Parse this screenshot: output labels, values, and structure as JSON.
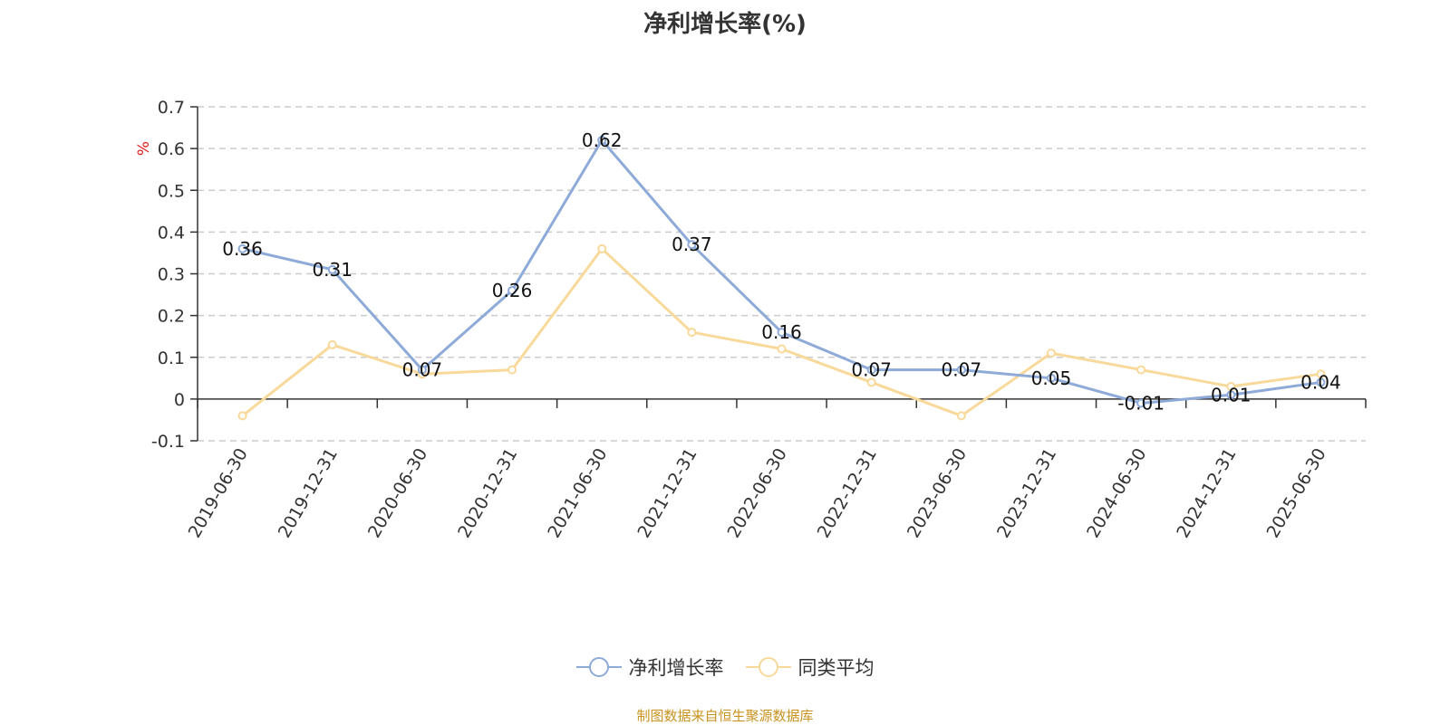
{
  "chart_data": {
    "type": "line",
    "title": "净利增长率(%)",
    "ylabel": "%",
    "xlabel": "",
    "categories": [
      "2019-06-30",
      "2019-12-31",
      "2020-06-30",
      "2020-12-31",
      "2021-06-30",
      "2021-12-31",
      "2022-06-30",
      "2022-12-31",
      "2023-06-30",
      "2023-12-31",
      "2024-06-30",
      "2024-12-31",
      "2025-06-30"
    ],
    "ylim": [
      -0.1,
      0.7
    ],
    "yticks": [
      -0.1,
      0,
      0.1,
      0.2,
      0.3,
      0.4,
      0.5,
      0.6,
      0.7
    ],
    "ytick_labels": [
      "-0.1",
      "0",
      "0.1",
      "0.2",
      "0.3",
      "0.4",
      "0.5",
      "0.6",
      "0.7"
    ],
    "grid": "horizontal dashed",
    "legend_position": "bottom-center",
    "series": [
      {
        "name": "净利增长率",
        "color": "#8eaad8",
        "values": [
          0.36,
          0.31,
          0.07,
          0.26,
          0.62,
          0.37,
          0.16,
          0.07,
          0.07,
          0.05,
          -0.01,
          0.01,
          0.04
        ],
        "labels": [
          "0.36",
          "0.31",
          "0.07",
          "0.26",
          "0.62",
          "0.37",
          "0.16",
          "0.07",
          "0.07",
          "0.05",
          "-0.01",
          "0.01",
          "0.04"
        ]
      },
      {
        "name": "同类平均",
        "color": "#f9d99a",
        "values": [
          -0.04,
          0.13,
          0.06,
          0.07,
          0.36,
          0.16,
          0.12,
          0.04,
          -0.04,
          0.11,
          0.07,
          0.03,
          0.06
        ]
      }
    ]
  },
  "source_note": "制图数据来自恒生聚源数据库"
}
